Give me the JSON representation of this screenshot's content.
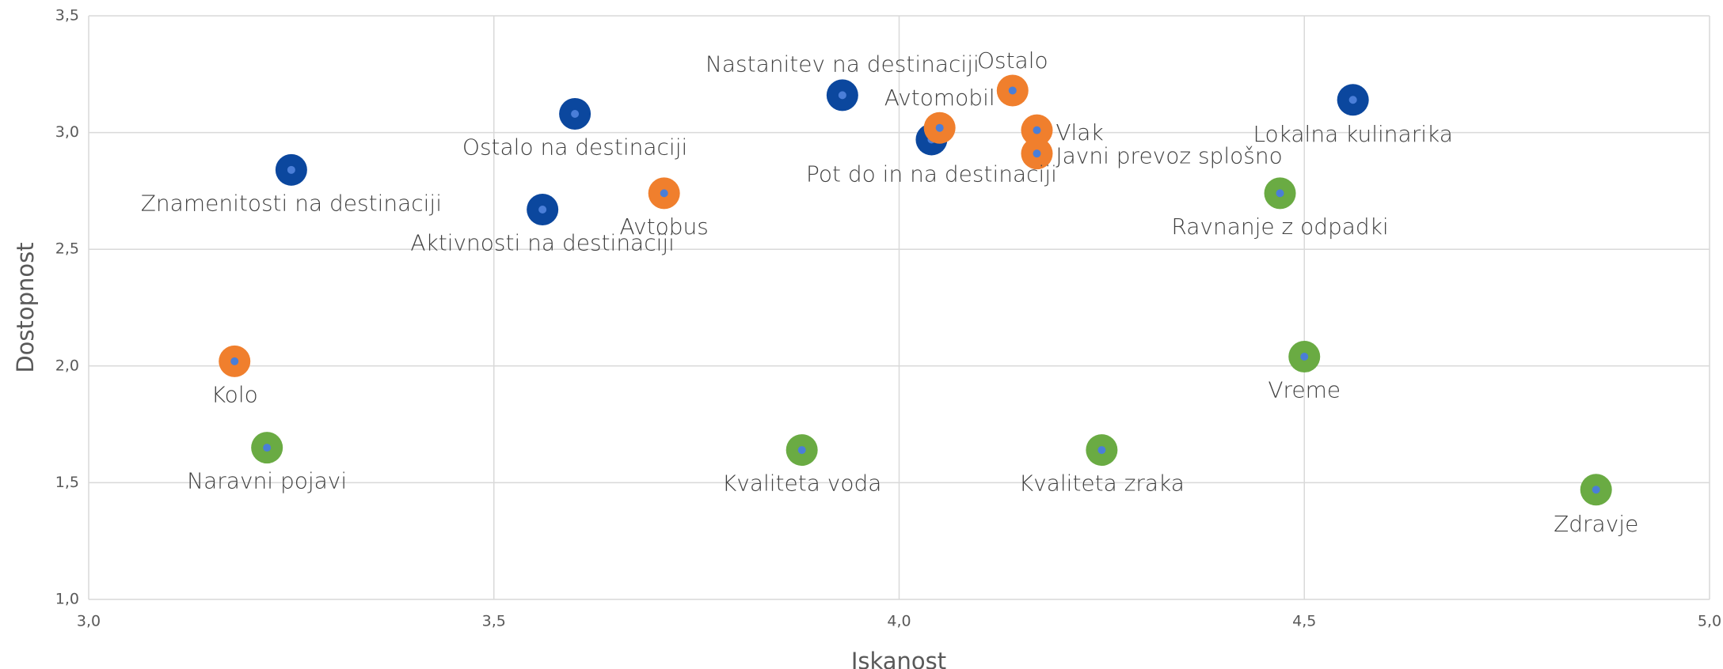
{
  "chart_data": {
    "type": "scatter",
    "xlabel": "Iskanost",
    "ylabel": "Dostopnost",
    "xlim": [
      3,
      5
    ],
    "xticks": [
      {
        "value": 3,
        "label": "3,0"
      },
      {
        "value": 3.5,
        "label": "3,5"
      },
      {
        "value": 4,
        "label": "4,0"
      },
      {
        "value": 4.5,
        "label": "4,5"
      },
      {
        "value": 5,
        "label": "5,0"
      }
    ],
    "ylim": [
      1,
      3.5
    ],
    "yticks": [
      {
        "value": 1,
        "label": "1,0"
      },
      {
        "value": 1.5,
        "label": "1,5"
      },
      {
        "value": 2,
        "label": "2,0"
      },
      {
        "value": 2.5,
        "label": "2,5"
      },
      {
        "value": 3,
        "label": "3,0"
      },
      {
        "value": 3.5,
        "label": "3,5"
      }
    ],
    "grid": true,
    "series": [
      {
        "color": "#0b479e",
        "x": [
          3.25,
          3.6,
          3.56,
          3.93,
          4.04,
          4.56
        ],
        "values": [
          2.84,
          3.08,
          2.67,
          3.16,
          2.97,
          3.14
        ],
        "labels": [
          "Znamenitosti na destinaciji",
          "Ostalo na destinaciji",
          "Aktivnosti na destinaciji",
          "Nastanitev na destinaciji",
          "Pot do in na destinaciji",
          "Lokalna kulinarika"
        ]
      },
      {
        "color": "#f07f2d",
        "x": [
          3.18,
          3.71,
          4.05,
          4.14,
          4.17,
          4.17
        ],
        "values": [
          2.02,
          2.74,
          3.02,
          3.18,
          3.01,
          2.91
        ],
        "labels": [
          "Kolo",
          "Avtobus",
          "Avtomobil",
          "Ostalo",
          "Vlak",
          "Javni prevoz splošno"
        ]
      },
      {
        "color": "#6aab43",
        "x": [
          3.22,
          3.88,
          4.25,
          4.47,
          4.5,
          4.86
        ],
        "values": [
          1.65,
          1.64,
          1.64,
          2.74,
          2.04,
          1.47
        ],
        "labels": [
          "Naravni pojavi",
          "Kvaliteta voda",
          "Kvaliteta zraka",
          "Ravnanje z odpadki",
          "Vreme",
          "Zdravje"
        ]
      }
    ]
  }
}
